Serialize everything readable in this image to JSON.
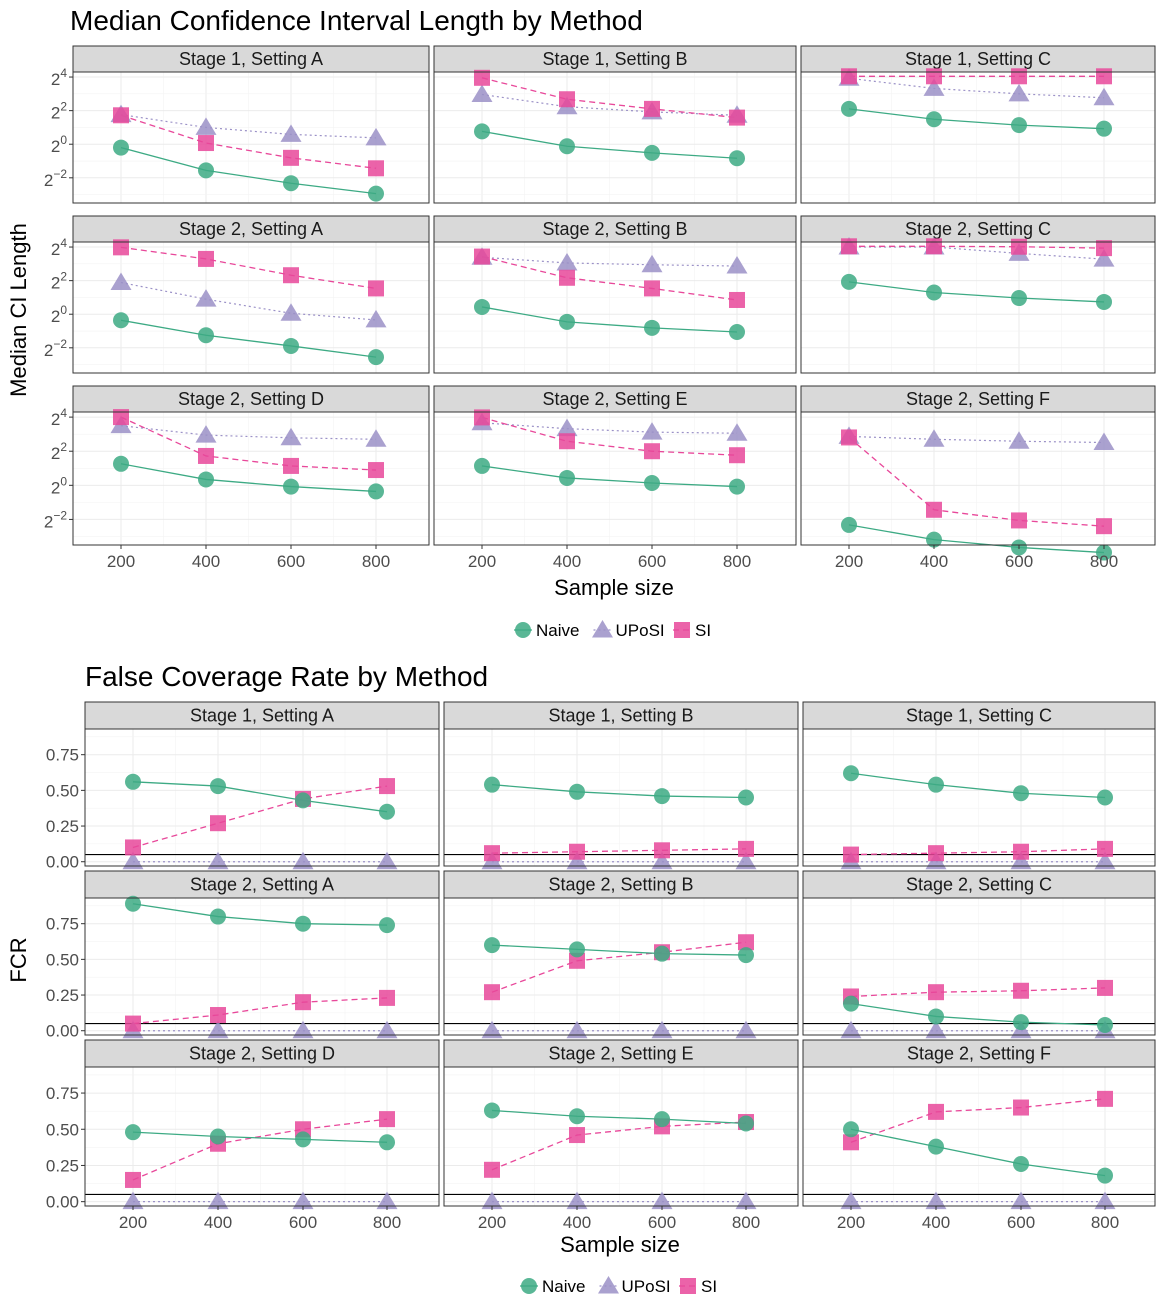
{
  "colors": {
    "Naive": "#3daa84",
    "UPoSI": "#9b91c7",
    "SI": "#e8489a"
  },
  "chart_data": [
    {
      "type": "line",
      "title": "Median Confidence Interval Length by Method",
      "xlabel": "Sample size",
      "ylabel": "Median CI Length",
      "y_scale": "log2",
      "ylim_log2": [
        -3.5,
        4.3
      ],
      "y_ticks": [
        {
          "base": "2",
          "exp": "4",
          "value": 16
        },
        {
          "base": "2",
          "exp": "2",
          "value": 4
        },
        {
          "base": "2",
          "exp": "0",
          "value": 1
        },
        {
          "base": "2",
          "exp": "−2",
          "value": 0.25
        }
      ],
      "x": [
        200,
        400,
        600,
        800
      ],
      "x_tick_labels": [
        "200",
        "400",
        "600",
        "800"
      ],
      "facets": [
        {
          "label": "Stage 1, Setting A",
          "series": [
            {
              "name": "Naive",
              "values": [
                0.87,
                0.34,
                0.2,
                0.13
              ]
            },
            {
              "name": "UPoSI",
              "values": [
                3.4,
                2.0,
                1.5,
                1.3
              ]
            },
            {
              "name": "SI",
              "values": [
                3.3,
                1.05,
                0.57,
                0.37
              ]
            }
          ]
        },
        {
          "label": "Stage 1, Setting B",
          "series": [
            {
              "name": "Naive",
              "values": [
                1.7,
                0.92,
                0.7,
                0.56
              ]
            },
            {
              "name": "UPoSI",
              "values": [
                7.8,
                4.7,
                3.8,
                3.3
              ]
            },
            {
              "name": "SI",
              "values": [
                15.5,
                6.4,
                4.3,
                3.0
              ]
            }
          ]
        },
        {
          "label": "Stage 1, Setting C",
          "series": [
            {
              "name": "Naive",
              "values": [
                4.3,
                2.8,
                2.2,
                1.9
              ]
            },
            {
              "name": "UPoSI",
              "values": [
                15.2,
                10.0,
                8.0,
                6.8
              ]
            },
            {
              "name": "SI",
              "values": [
                16.5,
                16.5,
                16.5,
                16.5
              ]
            }
          ]
        },
        {
          "label": "Stage 2, Setting A",
          "series": [
            {
              "name": "Naive",
              "values": [
                0.78,
                0.42,
                0.27,
                0.17
              ]
            },
            {
              "name": "UPoSI",
              "values": [
                3.7,
                1.86,
                1.04,
                0.79
              ]
            },
            {
              "name": "SI",
              "values": [
                15.8,
                9.8,
                5.0,
                2.9
              ]
            }
          ]
        },
        {
          "label": "Stage 2, Setting B",
          "series": [
            {
              "name": "Naive",
              "values": [
                1.35,
                0.73,
                0.57,
                0.48
              ]
            },
            {
              "name": "UPoSI",
              "values": [
                10.5,
                8.3,
                7.7,
                7.3
              ]
            },
            {
              "name": "SI",
              "values": [
                10.8,
                4.5,
                2.9,
                1.8
              ]
            }
          ]
        },
        {
          "label": "Stage 2, Setting C",
          "series": [
            {
              "name": "Naive",
              "values": [
                3.8,
                2.45,
                1.95,
                1.66
              ]
            },
            {
              "name": "UPoSI",
              "values": [
                16.0,
                16.0,
                12.3,
                9.7
              ]
            },
            {
              "name": "SI",
              "values": [
                16.5,
                16.5,
                16.2,
                15.3
              ]
            }
          ]
        },
        {
          "label": "Stage 2, Setting D",
          "series": [
            {
              "name": "Naive",
              "values": [
                2.4,
                1.27,
                0.95,
                0.78
              ]
            },
            {
              "name": "UPoSI",
              "values": [
                11.3,
                7.7,
                6.9,
                6.5
              ]
            },
            {
              "name": "SI",
              "values": [
                16.0,
                3.3,
                2.2,
                1.86
              ]
            }
          ]
        },
        {
          "label": "Stage 2, Setting E",
          "series": [
            {
              "name": "Naive",
              "values": [
                2.2,
                1.35,
                1.1,
                0.95
              ]
            },
            {
              "name": "UPoSI",
              "values": [
                12.7,
                10.0,
                8.7,
                8.3
              ]
            },
            {
              "name": "SI",
              "values": [
                15.8,
                6.0,
                4.0,
                3.4
              ]
            }
          ]
        },
        {
          "label": "Stage 2, Setting F",
          "series": [
            {
              "name": "Naive",
              "values": [
                0.2,
                0.11,
                0.08,
                0.065
              ]
            },
            {
              "name": "UPoSI",
              "values": [
                7.3,
                6.5,
                6.0,
                5.7
              ]
            },
            {
              "name": "SI",
              "values": [
                7.0,
                0.37,
                0.24,
                0.19
              ]
            }
          ]
        }
      ],
      "legend": [
        "Naive",
        "UPoSI",
        "SI"
      ],
      "legend_position": "bottom"
    },
    {
      "type": "line",
      "title": "False Coverage Rate by Method",
      "xlabel": "Sample size",
      "ylabel": "FCR",
      "ylim": [
        -0.03,
        0.93
      ],
      "y_ticks": [
        "0.00",
        "0.25",
        "0.50",
        "0.75"
      ],
      "reference_line": 0.05,
      "x": [
        200,
        400,
        600,
        800
      ],
      "x_tick_labels": [
        "200",
        "400",
        "600",
        "800"
      ],
      "facets": [
        {
          "label": "Stage 1, Setting A",
          "series": [
            {
              "name": "Naive",
              "values": [
                0.56,
                0.53,
                0.43,
                0.35
              ]
            },
            {
              "name": "UPoSI",
              "values": [
                0.0,
                0.0,
                0.0,
                0.0
              ]
            },
            {
              "name": "SI",
              "values": [
                0.1,
                0.27,
                0.44,
                0.53
              ]
            }
          ]
        },
        {
          "label": "Stage 1, Setting B",
          "series": [
            {
              "name": "Naive",
              "values": [
                0.54,
                0.49,
                0.46,
                0.45
              ]
            },
            {
              "name": "UPoSI",
              "values": [
                0.0,
                0.0,
                0.0,
                0.0
              ]
            },
            {
              "name": "SI",
              "values": [
                0.06,
                0.07,
                0.08,
                0.09
              ]
            }
          ]
        },
        {
          "label": "Stage 1, Setting C",
          "series": [
            {
              "name": "Naive",
              "values": [
                0.62,
                0.54,
                0.48,
                0.45
              ]
            },
            {
              "name": "UPoSI",
              "values": [
                0.0,
                0.0,
                0.0,
                0.0
              ]
            },
            {
              "name": "SI",
              "values": [
                0.05,
                0.06,
                0.07,
                0.09
              ]
            }
          ]
        },
        {
          "label": "Stage 2, Setting A",
          "series": [
            {
              "name": "Naive",
              "values": [
                0.89,
                0.8,
                0.75,
                0.74
              ]
            },
            {
              "name": "UPoSI",
              "values": [
                0.0,
                0.0,
                0.0,
                0.0
              ]
            },
            {
              "name": "SI",
              "values": [
                0.05,
                0.11,
                0.2,
                0.23
              ]
            }
          ]
        },
        {
          "label": "Stage 2, Setting B",
          "series": [
            {
              "name": "Naive",
              "values": [
                0.6,
                0.57,
                0.54,
                0.53
              ]
            },
            {
              "name": "UPoSI",
              "values": [
                0.0,
                0.0,
                0.0,
                0.0
              ]
            },
            {
              "name": "SI",
              "values": [
                0.27,
                0.49,
                0.55,
                0.62
              ]
            }
          ]
        },
        {
          "label": "Stage 2, Setting C",
          "series": [
            {
              "name": "Naive",
              "values": [
                0.19,
                0.1,
                0.06,
                0.04
              ]
            },
            {
              "name": "UPoSI",
              "values": [
                0.0,
                0.0,
                0.0,
                0.0
              ]
            },
            {
              "name": "SI",
              "values": [
                0.24,
                0.27,
                0.28,
                0.3
              ]
            }
          ]
        },
        {
          "label": "Stage 2, Setting D",
          "series": [
            {
              "name": "Naive",
              "values": [
                0.48,
                0.45,
                0.43,
                0.41
              ]
            },
            {
              "name": "UPoSI",
              "values": [
                0.0,
                0.0,
                0.0,
                0.0
              ]
            },
            {
              "name": "SI",
              "values": [
                0.15,
                0.4,
                0.5,
                0.57
              ]
            }
          ]
        },
        {
          "label": "Stage 2, Setting E",
          "series": [
            {
              "name": "Naive",
              "values": [
                0.63,
                0.59,
                0.57,
                0.54
              ]
            },
            {
              "name": "UPoSI",
              "values": [
                0.0,
                0.0,
                0.0,
                0.0
              ]
            },
            {
              "name": "SI",
              "values": [
                0.22,
                0.46,
                0.52,
                0.55
              ]
            }
          ]
        },
        {
          "label": "Stage 2, Setting F",
          "series": [
            {
              "name": "Naive",
              "values": [
                0.5,
                0.38,
                0.26,
                0.18
              ]
            },
            {
              "name": "UPoSI",
              "values": [
                0.0,
                0.0,
                0.0,
                0.0
              ]
            },
            {
              "name": "SI",
              "values": [
                0.41,
                0.62,
                0.65,
                0.71
              ]
            }
          ]
        }
      ],
      "legend": [
        "Naive",
        "UPoSI",
        "SI"
      ],
      "legend_position": "bottom"
    }
  ]
}
